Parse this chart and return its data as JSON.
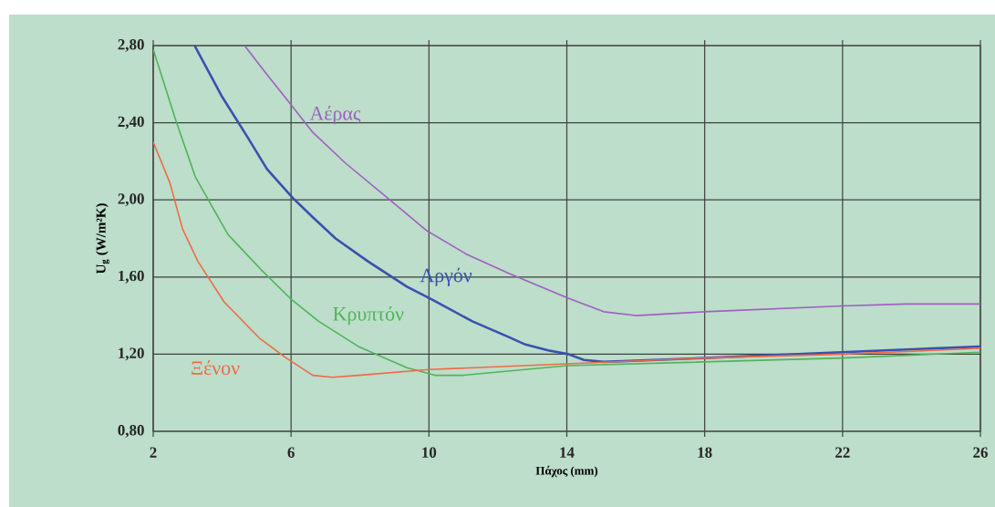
{
  "chart_data": {
    "type": "line",
    "xlabel": "Πάχος (mm)",
    "ylabel": "U$_{g}$ (W/m²K)",
    "xlim": [
      2,
      26
    ],
    "ylim": [
      0.8,
      2.8
    ],
    "xticks": [
      2,
      6,
      10,
      14,
      18,
      22,
      26
    ],
    "yticks": [
      {
        "value": 0.8,
        "label": "0,80"
      },
      {
        "value": 1.2,
        "label": "1,20"
      },
      {
        "value": 1.6,
        "label": "1,60"
      },
      {
        "value": 2.0,
        "label": "2,00"
      },
      {
        "value": 2.4,
        "label": "2,40"
      },
      {
        "value": 2.8,
        "label": "2,80"
      }
    ],
    "grid": true,
    "legend": false,
    "marker": "none",
    "line_style": "solid",
    "series": [
      {
        "name": "Αέρας",
        "color": "#a060c0",
        "x": [
          4.65,
          5.3,
          5.97,
          6.63,
          7.58,
          8.8,
          9.94,
          11.07,
          12.3,
          14.04,
          15.07,
          16.0,
          18,
          22,
          23.85,
          26
        ],
        "values": [
          2.8,
          2.65,
          2.5,
          2.35,
          2.19,
          2.01,
          1.84,
          1.72,
          1.62,
          1.49,
          1.42,
          1.4,
          1.42,
          1.45,
          1.46,
          1.46
        ]
      },
      {
        "name": "Αργόν",
        "color": "#3a50b0",
        "x": [
          3.2,
          3.98,
          4.72,
          5.3,
          6.05,
          6.63,
          7.29,
          8.24,
          9.36,
          10.12,
          11.26,
          12.3,
          12.8,
          13.46,
          14.04,
          14.5,
          15.07,
          18,
          22,
          26
        ],
        "values": [
          2.8,
          2.54,
          2.33,
          2.16,
          2.01,
          1.91,
          1.8,
          1.68,
          1.55,
          1.48,
          1.37,
          1.29,
          1.25,
          1.22,
          1.2,
          1.17,
          1.16,
          1.18,
          1.21,
          1.24
        ]
      },
      {
        "name": "Κρυπτόν",
        "color": "#50b458",
        "x": [
          2,
          2.66,
          3.22,
          4.17,
          5.12,
          5.97,
          6.8,
          7.95,
          9.36,
          10.2,
          10.97,
          14,
          18,
          22,
          26
        ],
        "values": [
          2.78,
          2.41,
          2.12,
          1.82,
          1.64,
          1.49,
          1.37,
          1.24,
          1.13,
          1.09,
          1.09,
          1.14,
          1.16,
          1.18,
          1.21
        ]
      },
      {
        "name": "Ξένον",
        "color": "#f06a48",
        "x": [
          2,
          2.48,
          2.85,
          3.3,
          4.06,
          5.1,
          5.86,
          6.63,
          7.2,
          7.95,
          10,
          14,
          18,
          22,
          26
        ],
        "values": [
          2.3,
          2.09,
          1.85,
          1.68,
          1.47,
          1.28,
          1.18,
          1.09,
          1.08,
          1.09,
          1.12,
          1.15,
          1.18,
          1.2,
          1.23
        ]
      }
    ]
  }
}
